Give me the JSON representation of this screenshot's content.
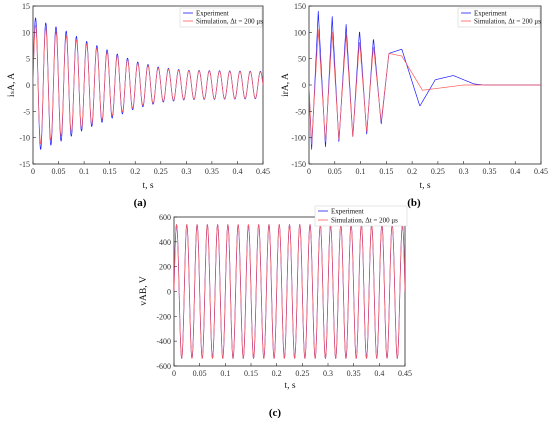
{
  "colors": {
    "experiment": "#1a1aff",
    "simulation": "#ff5a5a",
    "frame": "#262626"
  },
  "chart_data": [
    {
      "type": "line",
      "panel_label": "(a)",
      "ylabel": "iₛA, A",
      "xlabel": "t, s",
      "xlim": [
        0,
        0.45
      ],
      "ylim": [
        -15,
        15
      ],
      "xticks": [
        "0",
        "0.05",
        "0.1",
        "0.15",
        "0.2",
        "0.25",
        "0.3",
        "0.35",
        "0.4",
        "0.45"
      ],
      "yticks": [
        "15",
        "10",
        "5",
        "0",
        "-5",
        "-10",
        "-15"
      ],
      "legend": [
        "Experiment",
        "Simulation, Δt = 200 μs"
      ],
      "legend_position": "top-right",
      "series": [
        {
          "name": "Experiment",
          "frequency_hz": 50,
          "envelope": {
            "t": [
              0,
              0.02,
              0.06,
              0.1,
              0.15,
              0.2,
              0.25,
              0.3,
              0.45
            ],
            "amp": [
              13,
              12,
              10.5,
              8.5,
              6.5,
              4.5,
              3.3,
              2.8,
              2.6
            ]
          }
        },
        {
          "name": "Simulation, Δt = 200 μs",
          "frequency_hz": 50,
          "envelope": {
            "t": [
              0,
              0.02,
              0.06,
              0.1,
              0.15,
              0.2,
              0.25,
              0.3,
              0.45
            ],
            "amp": [
              11.5,
              11,
              9.5,
              8,
              6,
              4.2,
              3.1,
              2.7,
              2.5
            ]
          }
        }
      ]
    },
    {
      "type": "line",
      "panel_label": "(b)",
      "ylabel": "irA, A",
      "xlabel": "t, s",
      "xlim": [
        0,
        0.45
      ],
      "ylim": [
        -150,
        150
      ],
      "xticks": [
        "0",
        "0.05",
        "0.1",
        "0.15",
        "0.2",
        "0.25",
        "0.3",
        "0.35",
        "0.4",
        "0.45"
      ],
      "yticks": [
        "150",
        "100",
        "50",
        "0",
        "-50",
        "-100",
        "-150"
      ],
      "legend": [
        "Experiment",
        "Simulation, Δt = 200 μs"
      ],
      "legend_position": "top-right",
      "series": [
        {
          "name": "Experiment",
          "frequency_hz": 0,
          "points": {
            "t": [
              0,
              0.005,
              0.018,
              0.032,
              0.045,
              0.058,
              0.072,
              0.085,
              0.098,
              0.112,
              0.125,
              0.14,
              0.155,
              0.18,
              0.215,
              0.245,
              0.28,
              0.3,
              0.32,
              0.34,
              0.45
            ],
            "y": [
              0,
              -125,
              140,
              -120,
              130,
              -110,
              115,
              -100,
              105,
              -95,
              90,
              -75,
              60,
              68,
              -40,
              10,
              18,
              10,
              2,
              0,
              0
            ]
          }
        },
        {
          "name": "Simulation, Δt = 200 μs",
          "frequency_hz": 0,
          "points": {
            "t": [
              0,
              0.005,
              0.018,
              0.032,
              0.045,
              0.058,
              0.072,
              0.085,
              0.098,
              0.112,
              0.125,
              0.14,
              0.155,
              0.18,
              0.22,
              0.26,
              0.3,
              0.34,
              0.45
            ],
            "y": [
              0,
              -115,
              105,
              -110,
              100,
              -105,
              95,
              -100,
              85,
              -90,
              75,
              -70,
              60,
              55,
              -10,
              -5,
              0,
              0,
              0
            ]
          }
        }
      ]
    },
    {
      "type": "line",
      "panel_label": "(c)",
      "ylabel": "vAB, V",
      "xlabel": "t, s",
      "xlim": [
        0,
        0.45
      ],
      "ylim": [
        -600,
        600
      ],
      "xticks": [
        "0",
        "0.05",
        "0.1",
        "0.15",
        "0.2",
        "0.25",
        "0.3",
        "0.35",
        "0.4",
        "0.45"
      ],
      "yticks": [
        "600",
        "400",
        "200",
        "0",
        "-200",
        "-400",
        "-600"
      ],
      "legend": [
        "Experiment",
        "Simulation, Δt = 200 μs"
      ],
      "legend_position": "top-right",
      "series": [
        {
          "name": "Experiment",
          "frequency_hz": 50,
          "amplitude": 540
        },
        {
          "name": "Simulation, Δt = 200 μs",
          "frequency_hz": 50,
          "amplitude": 540
        }
      ]
    }
  ]
}
